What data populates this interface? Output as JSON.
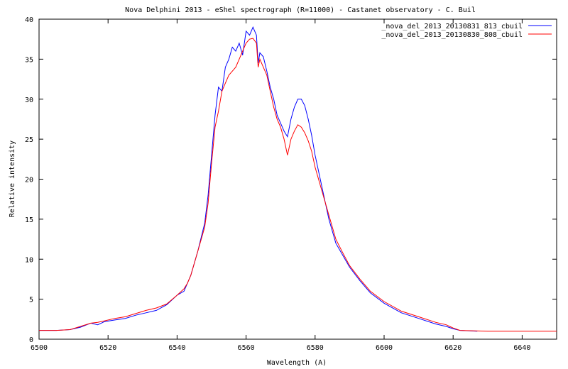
{
  "chart_data": {
    "type": "line",
    "title": "Nova Delphini 2013 - eShel spectrograph (R=11000) - Castanet observatory - C. Buil",
    "xlabel": "Wavelength (A)",
    "ylabel": "Relative intensity",
    "xlim": [
      6500,
      6650
    ],
    "ylim": [
      0,
      40
    ],
    "xticks": [
      6500,
      6520,
      6540,
      6560,
      6580,
      6600,
      6620,
      6640
    ],
    "yticks": [
      0,
      5,
      10,
      15,
      20,
      25,
      30,
      35,
      40
    ],
    "grid": false,
    "legend_position": "top-right",
    "series": [
      {
        "name": "_nova_del_2013_20130831_813_cbuil",
        "color": "#0000ff",
        "points": [
          [
            6500,
            1.1
          ],
          [
            6505,
            1.1
          ],
          [
            6509,
            1.2
          ],
          [
            6512,
            1.5
          ],
          [
            6515,
            2.0
          ],
          [
            6517,
            1.8
          ],
          [
            6519,
            2.2
          ],
          [
            6522,
            2.4
          ],
          [
            6525,
            2.6
          ],
          [
            6528,
            3.0
          ],
          [
            6531,
            3.3
          ],
          [
            6534,
            3.6
          ],
          [
            6537,
            4.3
          ],
          [
            6540,
            5.5
          ],
          [
            6542,
            6.0
          ],
          [
            6543,
            7.0
          ],
          [
            6544,
            8.0
          ],
          [
            6546,
            11.0
          ],
          [
            6548,
            14.5
          ],
          [
            6549,
            18.0
          ],
          [
            6550,
            23.0
          ],
          [
            6551,
            28.0
          ],
          [
            6552,
            31.5
          ],
          [
            6553,
            31.0
          ],
          [
            6554,
            34.0
          ],
          [
            6555,
            35.0
          ],
          [
            6556,
            36.5
          ],
          [
            6557,
            36.0
          ],
          [
            6558,
            37.0
          ],
          [
            6559,
            35.5
          ],
          [
            6560,
            38.5
          ],
          [
            6561,
            38.0
          ],
          [
            6562,
            39.0
          ],
          [
            6563,
            38.0
          ],
          [
            6563.5,
            34.5
          ],
          [
            6564,
            35.8
          ],
          [
            6565,
            35.3
          ],
          [
            6566,
            33.5
          ],
          [
            6567,
            31.5
          ],
          [
            6568,
            30.0
          ],
          [
            6569,
            28.0
          ],
          [
            6570,
            27.0
          ],
          [
            6571,
            26.0
          ],
          [
            6572,
            25.3
          ],
          [
            6573,
            27.5
          ],
          [
            6574,
            29.0
          ],
          [
            6575,
            30.0
          ],
          [
            6576,
            30.0
          ],
          [
            6577,
            29.2
          ],
          [
            6578,
            27.5
          ],
          [
            6579,
            25.5
          ],
          [
            6580,
            23.0
          ],
          [
            6582,
            19.0
          ],
          [
            6584,
            15.0
          ],
          [
            6586,
            12.0
          ],
          [
            6588,
            10.5
          ],
          [
            6590,
            9.0
          ],
          [
            6593,
            7.3
          ],
          [
            6596,
            5.8
          ],
          [
            6600,
            4.5
          ],
          [
            6605,
            3.3
          ],
          [
            6610,
            2.6
          ],
          [
            6615,
            1.9
          ],
          [
            6618,
            1.6
          ],
          [
            6620,
            1.3
          ],
          [
            6622,
            1.1
          ],
          [
            6627,
            1.0
          ]
        ]
      },
      {
        "name": "_nova_del_2013_20130830_808_cbuil",
        "color": "#ff0000",
        "points": [
          [
            6500,
            1.1
          ],
          [
            6505,
            1.1
          ],
          [
            6509,
            1.2
          ],
          [
            6512,
            1.6
          ],
          [
            6515,
            2.0
          ],
          [
            6517,
            2.1
          ],
          [
            6519,
            2.3
          ],
          [
            6522,
            2.6
          ],
          [
            6525,
            2.8
          ],
          [
            6528,
            3.2
          ],
          [
            6531,
            3.6
          ],
          [
            6534,
            3.9
          ],
          [
            6537,
            4.4
          ],
          [
            6540,
            5.5
          ],
          [
            6542,
            6.3
          ],
          [
            6543,
            7.0
          ],
          [
            6544,
            8.0
          ],
          [
            6546,
            11.0
          ],
          [
            6548,
            14.0
          ],
          [
            6549,
            17.0
          ],
          [
            6550,
            22.0
          ],
          [
            6551,
            26.5
          ],
          [
            6552,
            28.5
          ],
          [
            6553,
            31.0
          ],
          [
            6554,
            32.0
          ],
          [
            6555,
            33.0
          ],
          [
            6556,
            33.5
          ],
          [
            6557,
            34.0
          ],
          [
            6558,
            35.0
          ],
          [
            6559,
            36.0
          ],
          [
            6560,
            37.0
          ],
          [
            6561,
            37.5
          ],
          [
            6562,
            37.6
          ],
          [
            6563,
            37.0
          ],
          [
            6563.5,
            34.0
          ],
          [
            6564,
            35.0
          ],
          [
            6565,
            34.0
          ],
          [
            6566,
            33.0
          ],
          [
            6567,
            31.0
          ],
          [
            6568,
            29.0
          ],
          [
            6569,
            27.5
          ],
          [
            6570,
            26.5
          ],
          [
            6571,
            25.0
          ],
          [
            6572,
            23.0
          ],
          [
            6573,
            25.0
          ],
          [
            6574,
            26.0
          ],
          [
            6575,
            26.8
          ],
          [
            6576,
            26.5
          ],
          [
            6577,
            25.8
          ],
          [
            6578,
            24.8
          ],
          [
            6579,
            23.5
          ],
          [
            6580,
            21.5
          ],
          [
            6582,
            18.5
          ],
          [
            6584,
            15.5
          ],
          [
            6586,
            12.5
          ],
          [
            6588,
            10.8
          ],
          [
            6590,
            9.2
          ],
          [
            6593,
            7.5
          ],
          [
            6596,
            6.0
          ],
          [
            6600,
            4.7
          ],
          [
            6605,
            3.5
          ],
          [
            6610,
            2.8
          ],
          [
            6615,
            2.1
          ],
          [
            6618,
            1.8
          ],
          [
            6620,
            1.4
          ],
          [
            6622,
            1.1
          ],
          [
            6630,
            1.0
          ],
          [
            6640,
            1.0
          ],
          [
            6650,
            1.0
          ]
        ]
      }
    ]
  }
}
